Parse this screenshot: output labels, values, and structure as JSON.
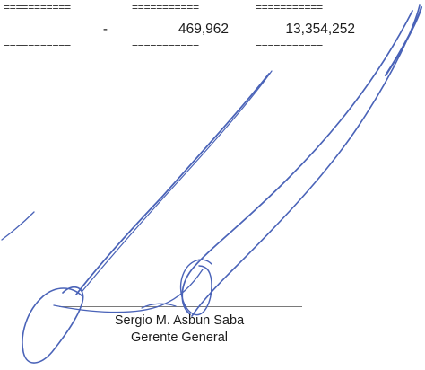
{
  "table": {
    "top_rule": [
      "===========",
      "===========",
      "==========="
    ],
    "row": {
      "col1": "-",
      "col2": "469,962",
      "col3": "13,354,252"
    },
    "bottom_rule": [
      "===========",
      "===========",
      "==========="
    ]
  },
  "signature_block": {
    "name": "Sergio M. Asbun Saba",
    "title": "Gerente General",
    "ink_color": "#4a63b8"
  }
}
